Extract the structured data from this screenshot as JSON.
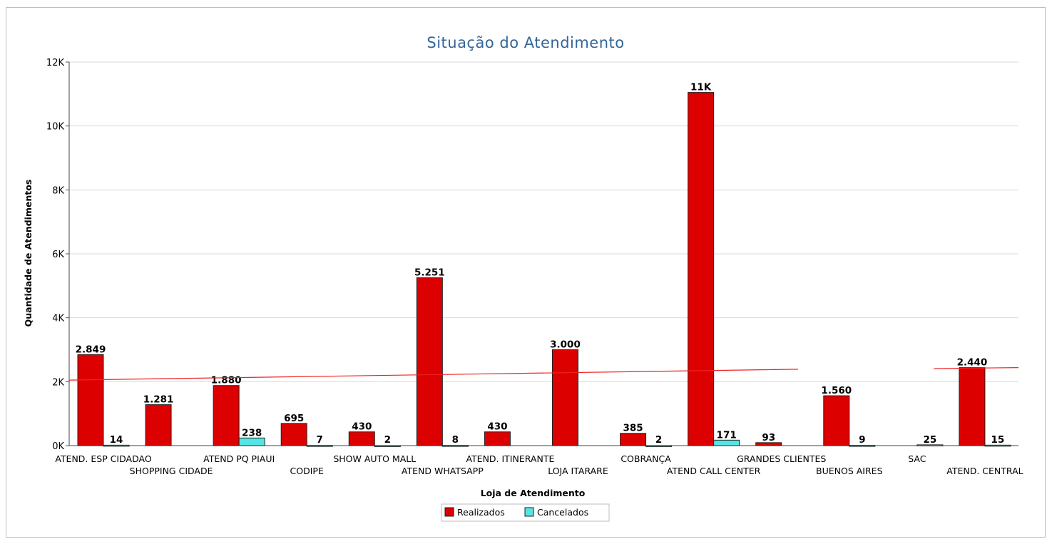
{
  "chart_data": {
    "type": "bar",
    "title": "Situação do Atendimento",
    "xlabel": "Loja de Atendimento",
    "ylabel": "Quantidade de Atendimentos",
    "ylim": [
      0,
      12000
    ],
    "y_ticks": [
      {
        "value": 0,
        "label": "0K"
      },
      {
        "value": 2000,
        "label": "2K"
      },
      {
        "value": 4000,
        "label": "4K"
      },
      {
        "value": 6000,
        "label": "6K"
      },
      {
        "value": 8000,
        "label": "8K"
      },
      {
        "value": 10000,
        "label": "10K"
      },
      {
        "value": 12000,
        "label": "12K"
      }
    ],
    "grid": true,
    "legend_position": "bottom",
    "categories": [
      "ATEND. ESP CIDADAO",
      "SHOPPING CIDADE",
      "ATEND PQ PIAUI",
      "CODIPE",
      "SHOW AUTO MALL",
      "ATEND WHATSAPP",
      "ATEND. ITINERANTE",
      "LOJA ITARARE",
      "COBRANÇA",
      "ATEND CALL CENTER",
      "GRANDES CLIENTES",
      "BUENOS AIRES",
      "SAC",
      "ATEND. CENTRAL"
    ],
    "series": [
      {
        "name": "Realizados",
        "color": "#dd0000",
        "values": [
          2849,
          1281,
          1880,
          695,
          430,
          5251,
          430,
          3000,
          385,
          11050,
          93,
          1560,
          null,
          2440
        ],
        "labels": [
          "2.849",
          "1.281",
          "1.880",
          "695",
          "430",
          "5.251",
          "430",
          "3.000",
          "385",
          "11K",
          "93",
          "1.560",
          null,
          "2.440"
        ]
      },
      {
        "name": "Cancelados",
        "color": "#55e5e5",
        "values": [
          14,
          null,
          238,
          7,
          2,
          8,
          null,
          null,
          2,
          171,
          null,
          9,
          25,
          15
        ],
        "labels": [
          "14",
          null,
          "238",
          "7",
          "2",
          "8",
          null,
          null,
          "2",
          "171",
          null,
          "9",
          "25",
          "15"
        ]
      }
    ],
    "trend_line": {
      "color": "#ee2222",
      "segments": [
        {
          "from": [
            0,
            2050
          ],
          "to": [
            10.75,
            2390
          ]
        },
        {
          "from": [
            12.75,
            2410
          ],
          "to": [
            14,
            2440
          ]
        }
      ]
    }
  }
}
